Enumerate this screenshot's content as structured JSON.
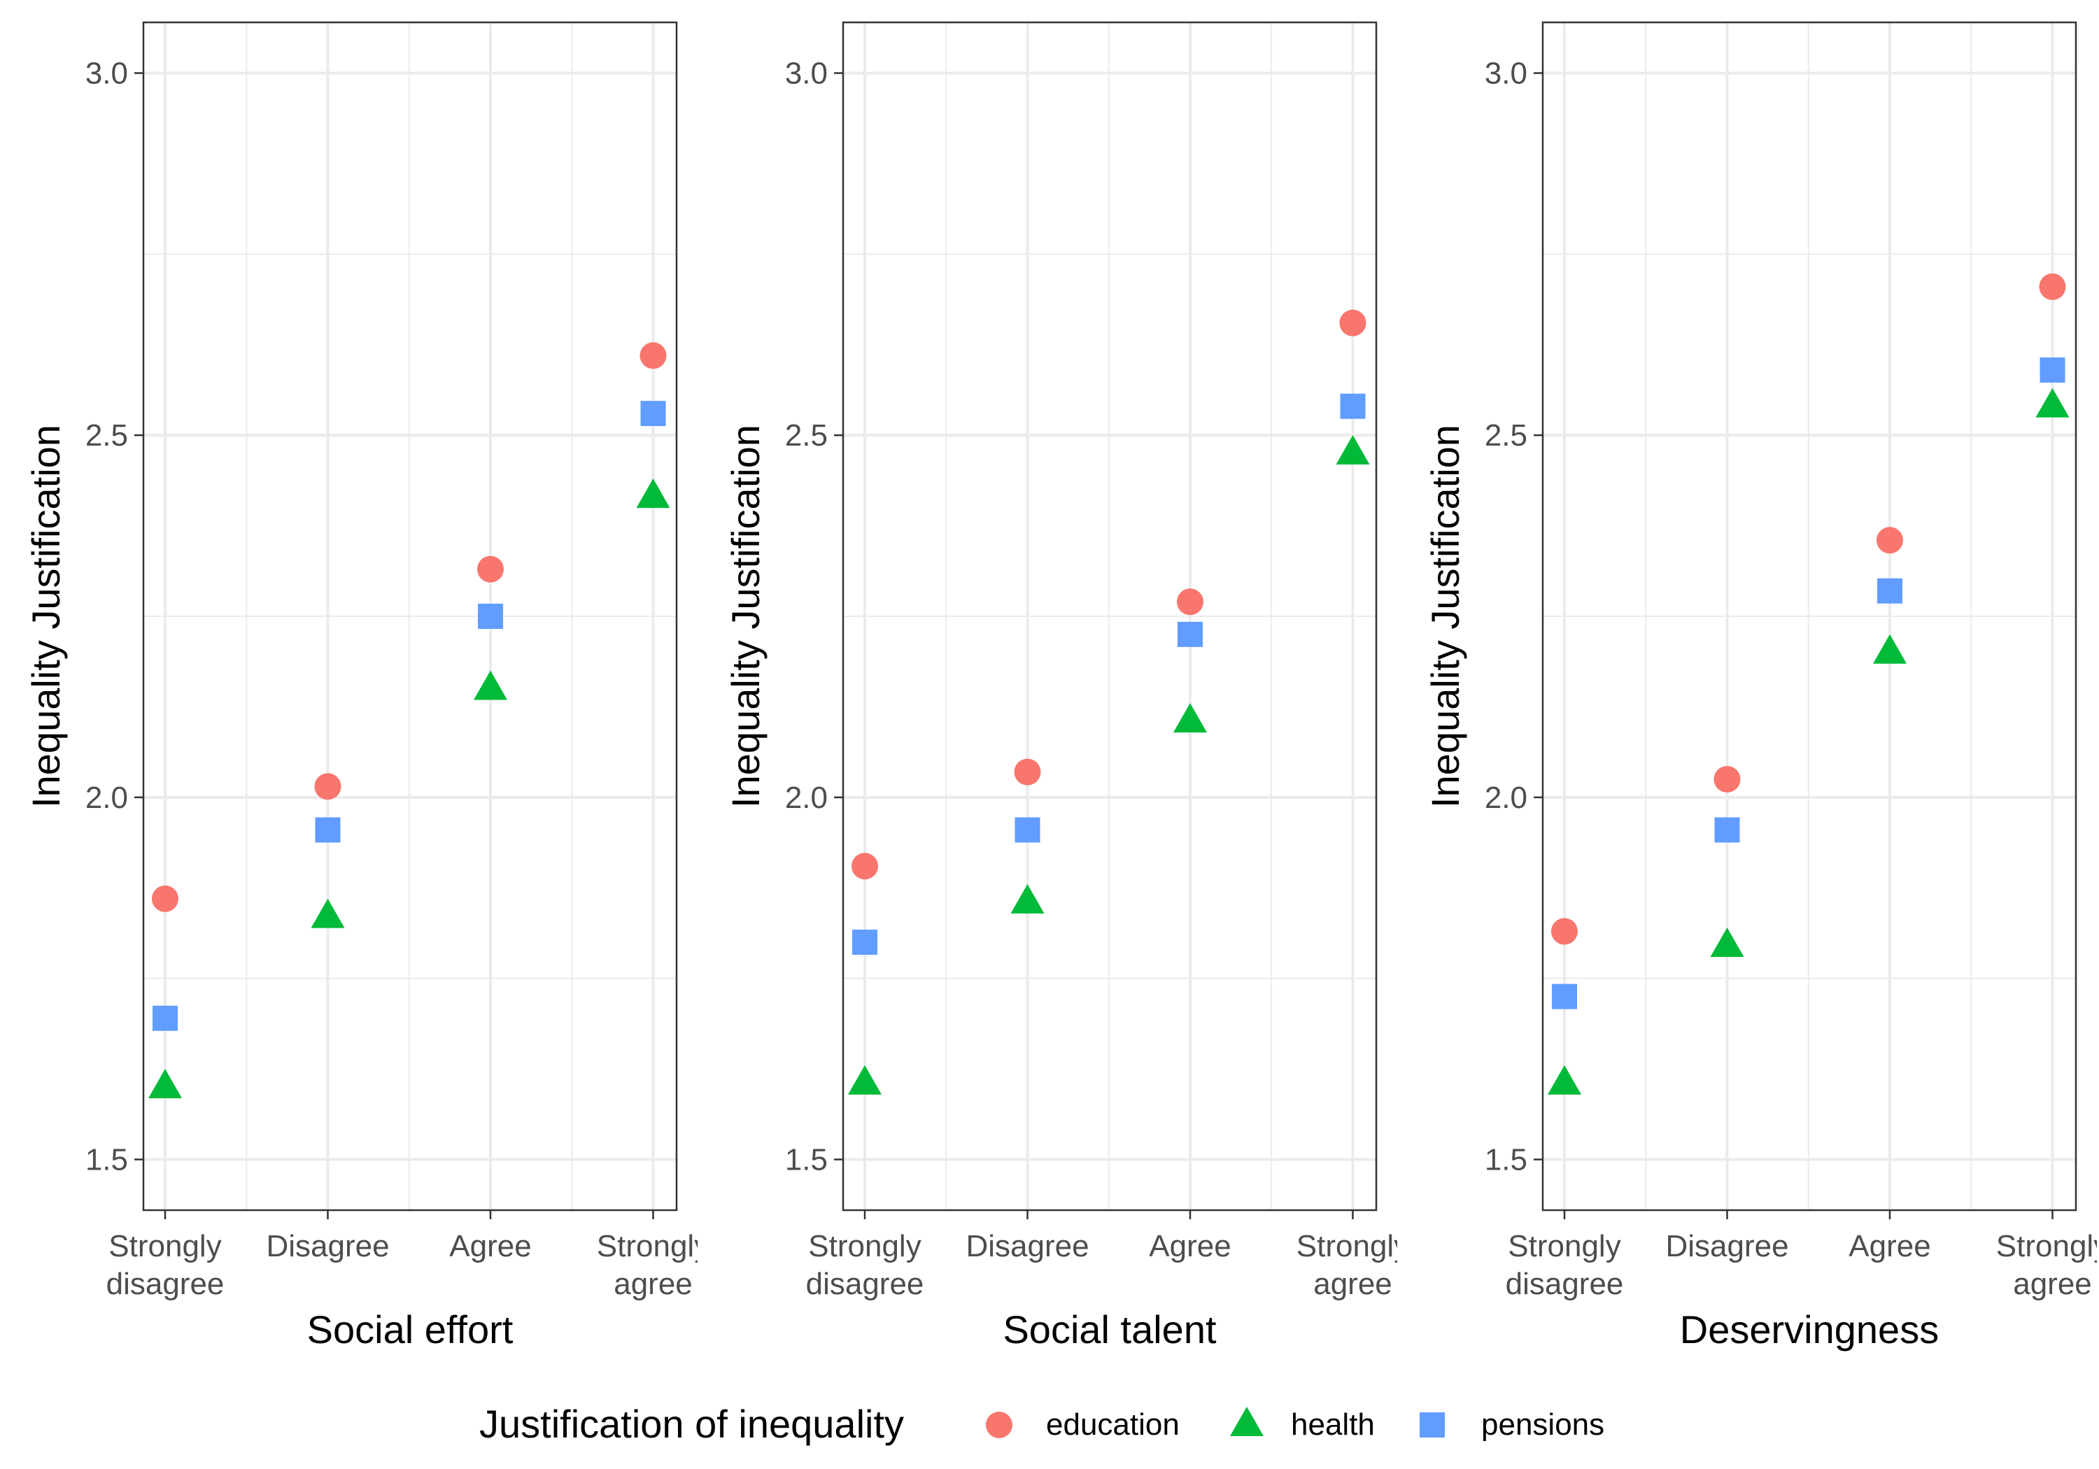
{
  "chart_data": {
    "type": "scatter",
    "categories": [
      [
        "Strongly",
        "disagree"
      ],
      [
        "Disagree"
      ],
      [
        "Agree"
      ],
      [
        "Strongly",
        "agree"
      ]
    ],
    "ylim": [
      1.43,
      3.07
    ],
    "yticks": [
      "1.5",
      "2.0",
      "2.5",
      "3.0"
    ],
    "grid": true,
    "legend_position": "bottom",
    "legend": {
      "title": "Justification of inequality",
      "entries": [
        "education",
        "health",
        "pensions"
      ]
    },
    "colors": {
      "education": "#F8766D",
      "health": "#00BA38",
      "pensions": "#619CFF"
    },
    "markers": {
      "education": "circle",
      "health": "triangle",
      "pensions": "square"
    },
    "panels": [
      {
        "xlabel": "Social effort",
        "ylabel": "Inequality Justification",
        "series": [
          {
            "name": "education",
            "values": [
              1.86,
              2.015,
              2.315,
              2.61
            ]
          },
          {
            "name": "health",
            "values": [
              1.6,
              1.835,
              2.15,
              2.415
            ]
          },
          {
            "name": "pensions",
            "values": [
              1.695,
              1.955,
              2.25,
              2.53
            ]
          }
        ]
      },
      {
        "xlabel": "Social talent",
        "ylabel": "Inequality Justification",
        "series": [
          {
            "name": "education",
            "values": [
              1.905,
              2.035,
              2.27,
              2.655
            ]
          },
          {
            "name": "health",
            "values": [
              1.605,
              1.855,
              2.105,
              2.475
            ]
          },
          {
            "name": "pensions",
            "values": [
              1.8,
              1.955,
              2.225,
              2.54
            ]
          }
        ]
      },
      {
        "xlabel": "Deservingness",
        "ylabel": "Inequality Justification",
        "series": [
          {
            "name": "education",
            "values": [
              1.815,
              2.025,
              2.355,
              2.705
            ]
          },
          {
            "name": "health",
            "values": [
              1.605,
              1.795,
              2.2,
              2.54
            ]
          },
          {
            "name": "pensions",
            "values": [
              1.725,
              1.955,
              2.285,
              2.59
            ]
          }
        ]
      }
    ]
  }
}
